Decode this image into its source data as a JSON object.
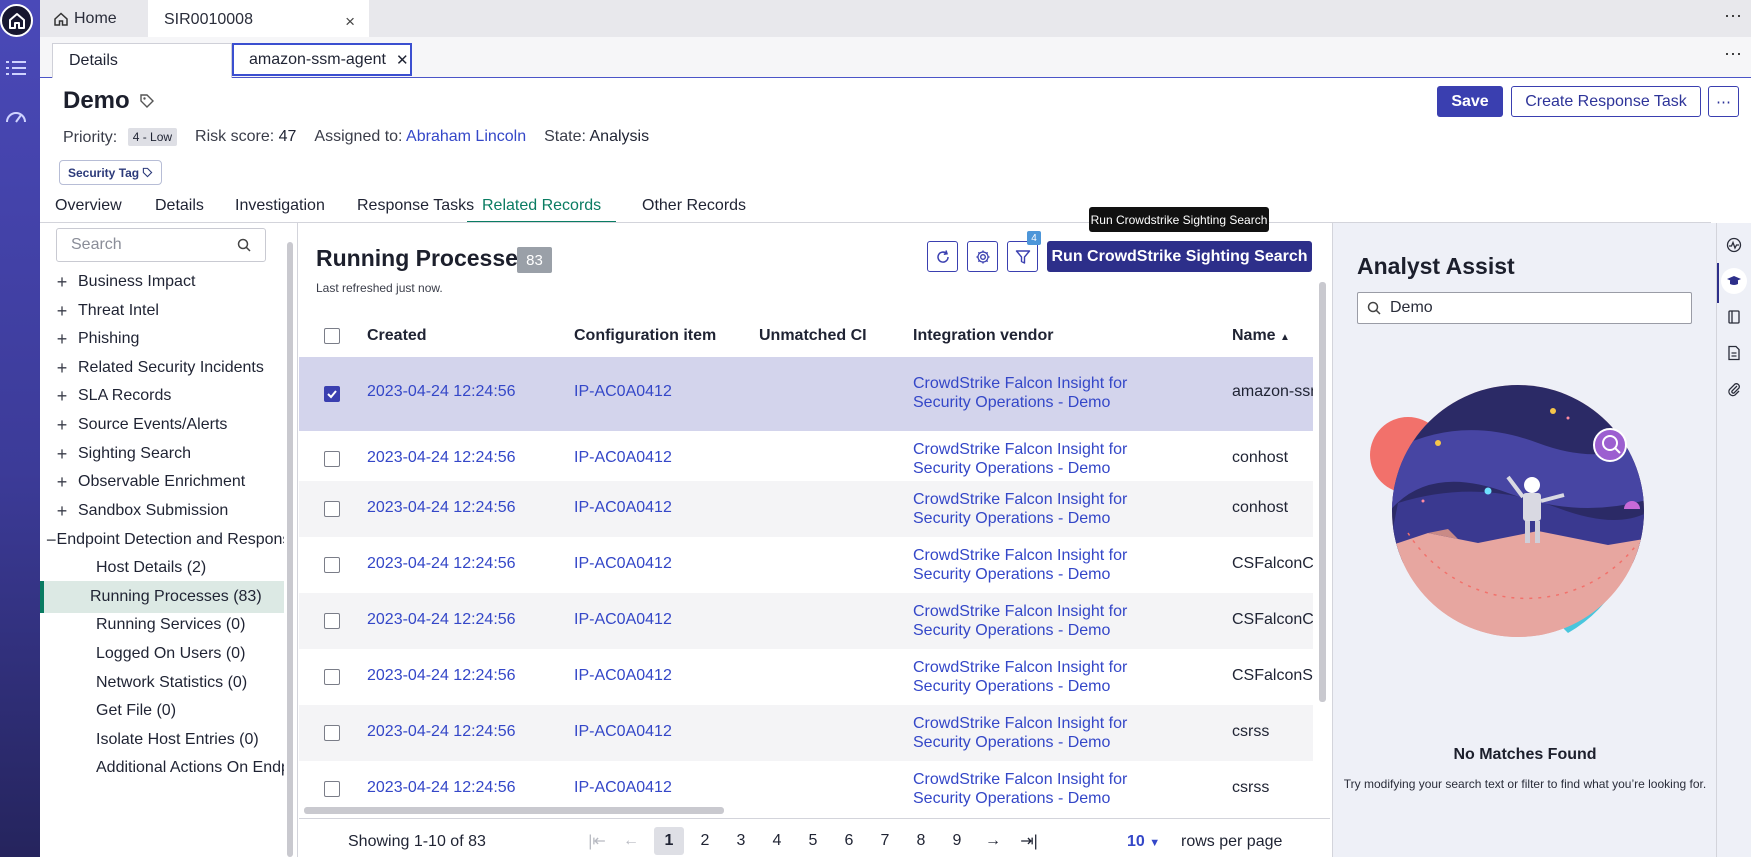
{
  "top_tabs": [
    {
      "label": "Home"
    },
    {
      "label": "SIR0010008"
    }
  ],
  "sub_tabs": [
    {
      "label": "Details"
    },
    {
      "label": "amazon-ssm-agent"
    }
  ],
  "header": {
    "title": "Demo",
    "save_label": "Save",
    "create_label": "Create Response Task",
    "priority_label": "Priority:",
    "priority_value": "4 - Low",
    "risk_label": "Risk score:",
    "risk_value": "47",
    "assigned_label": "Assigned to:",
    "assigned_value": "Abraham Lincoln",
    "state_label": "State:",
    "state_value": "Analysis",
    "security_tag": "Security Tag"
  },
  "section_tabs": [
    "Overview",
    "Details",
    "Investigation",
    "Response Tasks",
    "Related Records",
    "Other Records"
  ],
  "active_section": "Related Records",
  "nav": {
    "search_placeholder": "Search",
    "groups": [
      "Business Impact",
      "Threat Intel",
      "Phishing",
      "Related Security Incidents",
      "SLA Records",
      "Source Events/Alerts",
      "Sighting Search",
      "Observable Enrichment",
      "Sandbox Submission"
    ],
    "expanded_group": "Endpoint Detection and Response",
    "children": [
      "Host Details (2)",
      "Running Processes (83)",
      "Running Services (0)",
      "Logged On Users (0)",
      "Network Statistics (0)",
      "Get File (0)",
      "Isolate Host Entries (0)",
      "Additional Actions On Endpoint"
    ],
    "selected_child": "Running Processes (83)"
  },
  "panel": {
    "title": "Running Processes",
    "count": "83",
    "refreshed": "Last refreshed just now.",
    "filter_count": "4",
    "run_button": "Run CrowdStrike Sighting Search",
    "tooltip": "Run Crowdstrike Sighting Search"
  },
  "table": {
    "columns": [
      "Created",
      "Configuration item",
      "Unmatched CI",
      "Integration vendor",
      "Name"
    ],
    "sort_indicator": "▲",
    "rows": [
      {
        "created": "2023-04-24 12:24:56",
        "ci": "IP-AC0A0412",
        "unmatched": "",
        "vendor1": "CrowdStrike Falcon Insight for",
        "vendor2": "Security Operations - Demo",
        "name": "amazon-ssm-agent",
        "checked": true
      },
      {
        "created": "2023-04-24 12:24:56",
        "ci": "IP-AC0A0412",
        "unmatched": "",
        "vendor1": "CrowdStrike Falcon Insight for",
        "vendor2": "Security Operations - Demo",
        "name": "conhost",
        "checked": false
      },
      {
        "created": "2023-04-24 12:24:56",
        "ci": "IP-AC0A0412",
        "unmatched": "",
        "vendor1": "CrowdStrike Falcon Insight for",
        "vendor2": "Security Operations - Demo",
        "name": "conhost",
        "checked": false
      },
      {
        "created": "2023-04-24 12:24:56",
        "ci": "IP-AC0A0412",
        "unmatched": "",
        "vendor1": "CrowdStrike Falcon Insight for",
        "vendor2": "Security Operations - Demo",
        "name": "CSFalconContainer",
        "checked": false
      },
      {
        "created": "2023-04-24 12:24:56",
        "ci": "IP-AC0A0412",
        "unmatched": "",
        "vendor1": "CrowdStrike Falcon Insight for",
        "vendor2": "Security Operations - Demo",
        "name": "CSFalconContainer",
        "checked": false
      },
      {
        "created": "2023-04-24 12:24:56",
        "ci": "IP-AC0A0412",
        "unmatched": "",
        "vendor1": "CrowdStrike Falcon Insight for",
        "vendor2": "Security Operations - Demo",
        "name": "CSFalconService",
        "checked": false
      },
      {
        "created": "2023-04-24 12:24:56",
        "ci": "IP-AC0A0412",
        "unmatched": "",
        "vendor1": "CrowdStrike Falcon Insight for",
        "vendor2": "Security Operations - Demo",
        "name": "csrss",
        "checked": false
      },
      {
        "created": "2023-04-24 12:24:56",
        "ci": "IP-AC0A0412",
        "unmatched": "",
        "vendor1": "CrowdStrike Falcon Insight for",
        "vendor2": "Security Operations - Demo",
        "name": "csrss",
        "checked": false
      }
    ]
  },
  "pager": {
    "showing": "Showing 1-10 of 83",
    "pages": [
      "1",
      "2",
      "3",
      "4",
      "5",
      "6",
      "7",
      "8",
      "9"
    ],
    "current_page": "1",
    "rows_per_page": "10",
    "rows_per_page_label": "rows per page"
  },
  "assist": {
    "title": "Analyst Assist",
    "search_value": "Demo",
    "no_match": "No Matches Found",
    "no_match_sub": "Try modifying your search text or filter to find what you’re looking for."
  },
  "colors": {
    "primary": "#3a3fb0",
    "link": "#3447c8",
    "active_tab": "#0a7c62",
    "selected_row": "#d3d4ec",
    "rail": "#3c3b98"
  }
}
